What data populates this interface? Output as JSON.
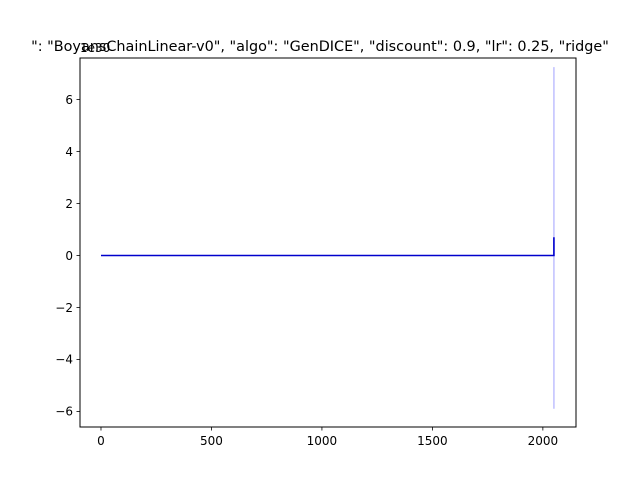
{
  "chart_data": {
    "type": "line",
    "title": "\": \"BoyansChainLinear-v0\", \"algo\": \"GenDICE\", \"discount\": 0.9, \"lr\": 0.25, \"ridge\"",
    "offset_label": "1e30",
    "xlabel": "",
    "ylabel": "",
    "xlim": [
      -95,
      2150
    ],
    "ylim": [
      -6.6,
      7.6
    ],
    "x_ticks": [
      0,
      500,
      1000,
      1500,
      2000
    ],
    "x_tick_labels": [
      "0",
      "500",
      "1000",
      "1500",
      "2000"
    ],
    "y_ticks": [
      -6,
      -4,
      -2,
      0,
      2,
      4,
      6
    ],
    "y_tick_labels": [
      "−6",
      "−4",
      "−2",
      "0",
      "2",
      "4",
      "6"
    ],
    "grid": false,
    "series": [
      {
        "role": "band",
        "color": "#0000ff",
        "opacity": 0.25,
        "x": [
          2050,
          2050
        ],
        "y": [
          -5.9,
          7.25
        ]
      },
      {
        "role": "mean",
        "color": "#0000cc",
        "x": [
          0,
          2050,
          2050
        ],
        "y": [
          0,
          0,
          0.7
        ]
      }
    ]
  }
}
